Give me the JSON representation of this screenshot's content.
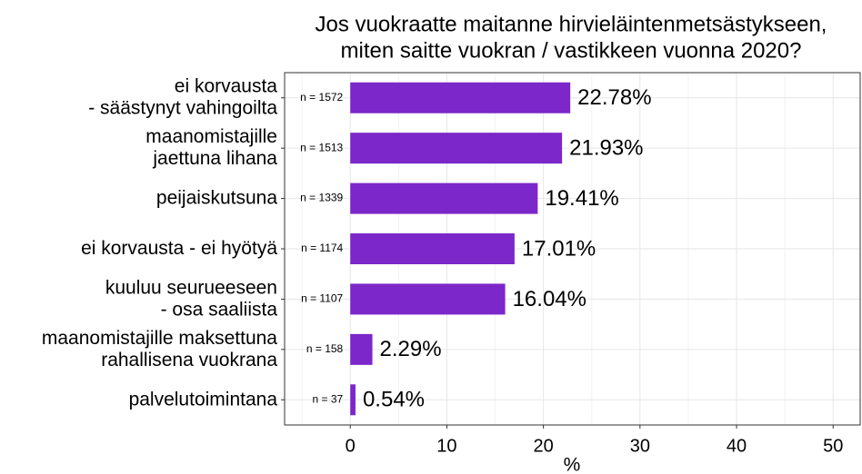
{
  "chart_data": {
    "type": "barh",
    "title": [
      "Jos vuokraatte maitanne hirvieläintenmetsästykseen,",
      "miten saitte vuokran / vastikkeen vuonna 2020?"
    ],
    "xlabel": "%",
    "categories": [
      [
        "ei korvausta",
        "- säästynyt vahingoilta"
      ],
      [
        "maanomistajille",
        "jaettuna lihana"
      ],
      [
        "peijaiskutsuna"
      ],
      [
        "ei korvausta - ei hyötyä"
      ],
      [
        "kuuluu seurueeseen",
        "- osa saaliista"
      ],
      [
        "maanomistajille maksettuna",
        "rahallisena vuokrana"
      ],
      [
        "palvelutoimintana"
      ]
    ],
    "values": [
      22.78,
      21.93,
      19.41,
      17.01,
      16.04,
      2.29,
      0.54
    ],
    "value_labels": [
      "22.78%",
      "21.93%",
      "19.41%",
      "17.01%",
      "16.04%",
      "2.29%",
      "0.54%"
    ],
    "n_labels": [
      "n = 1572",
      "n = 1513",
      "n = 1339",
      "n = 1174",
      "n = 1107",
      "n = 158",
      "n = 37"
    ],
    "color": "#7b27c9",
    "xlim": [
      -6.8,
      52.8
    ],
    "xticks": [
      0,
      10,
      20,
      30,
      40,
      50
    ],
    "xminor": [
      -5,
      5,
      15,
      25,
      35,
      45
    ],
    "grid": true
  }
}
